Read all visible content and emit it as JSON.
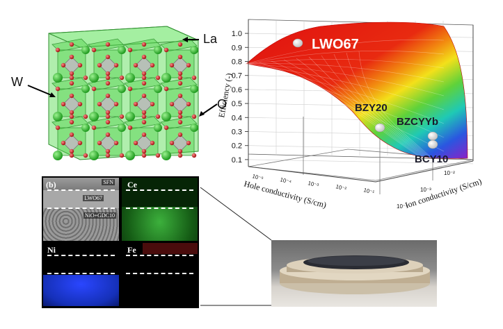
{
  "crystal": {
    "label_la": "La",
    "label_w": "W",
    "label_o": "O"
  },
  "plot3d": {
    "zlabel": "Efficiency (-)",
    "xlabel": "Hole conductivity (S/cm)",
    "ylabel": "Ion conductivity (S/cm)",
    "z_ticks": [
      "0.1",
      "0.2",
      "0.3",
      "0.4",
      "0.5",
      "0.6",
      "0.7",
      "0.8",
      "0.9",
      "1.0"
    ],
    "x_ticks": [
      "10⁻⁵",
      "10⁻⁴",
      "10⁻³",
      "10⁻²",
      "10⁻¹"
    ],
    "y_ticks": [
      "10⁻⁴",
      "10⁻³",
      "10⁻²"
    ],
    "materials": [
      {
        "name": "LWO67"
      },
      {
        "name": "BZY20"
      },
      {
        "name": "BZCYYb"
      },
      {
        "name": "BCY10"
      }
    ]
  },
  "micrograph": {
    "panel_label": "(b)",
    "layers": [
      "SFN",
      "LWO67",
      "NiO+GDC10"
    ],
    "maps": [
      "Ce",
      "Ni",
      "Fe"
    ],
    "colors": {
      "ce": "#2e8b2e",
      "ni": "#1f3fd6",
      "fe": "#b01818"
    }
  },
  "photo": {
    "subject": "button-cell-photo"
  }
}
